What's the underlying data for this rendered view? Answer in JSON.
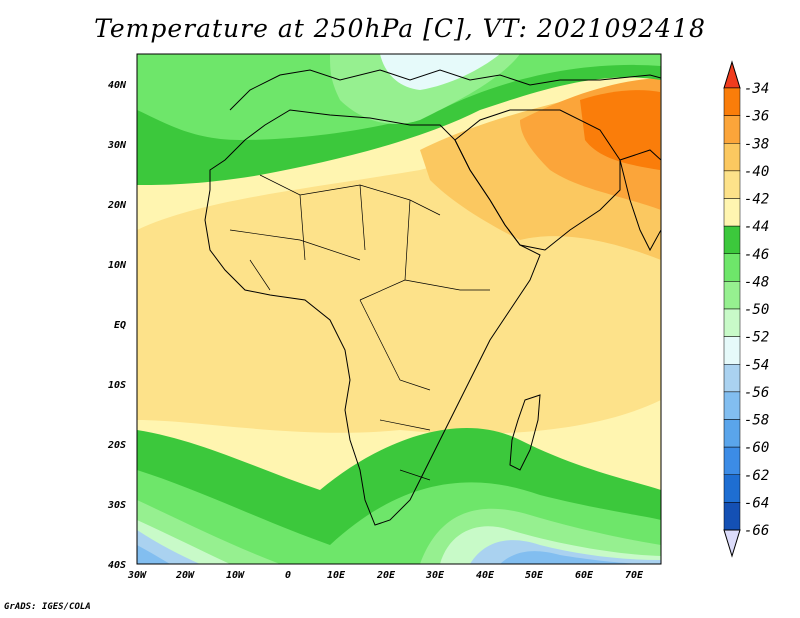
{
  "title": "Temperature at 250hPa [C], VT: 2021092418",
  "credit": "GrADS: IGES/COLA",
  "map": {
    "lat_labels": [
      "40N",
      "30N",
      "20N",
      "10N",
      "EQ",
      "10S",
      "20S",
      "30S",
      "40S"
    ],
    "lon_labels": [
      "30W",
      "20W",
      "10W",
      "0",
      "10E",
      "20E",
      "30E",
      "40E",
      "50E",
      "60E",
      "70E"
    ],
    "lat_range": [
      -40,
      45
    ],
    "lon_range": [
      -30,
      76
    ]
  },
  "colorbar": {
    "labels": [
      "-34",
      "-36",
      "-38",
      "-40",
      "-42",
      "-44",
      "-46",
      "-48",
      "-50",
      "-52",
      "-54",
      "-56",
      "-58",
      "-60",
      "-62",
      "-64",
      "-66"
    ],
    "colors": [
      "#f03c1e",
      "#fa7d0a",
      "#fba53a",
      "#fbc860",
      "#fde28a",
      "#fff5b0",
      "#3cc83c",
      "#6ee66a",
      "#96f090",
      "#c8fac8",
      "#e6fafa",
      "#aad2f0",
      "#82bef0",
      "#5aa5eb",
      "#3c8ce6",
      "#1e6ed2",
      "#1450b4",
      "#0a2896",
      "#0a1464",
      "#dcdcfa"
    ]
  }
}
